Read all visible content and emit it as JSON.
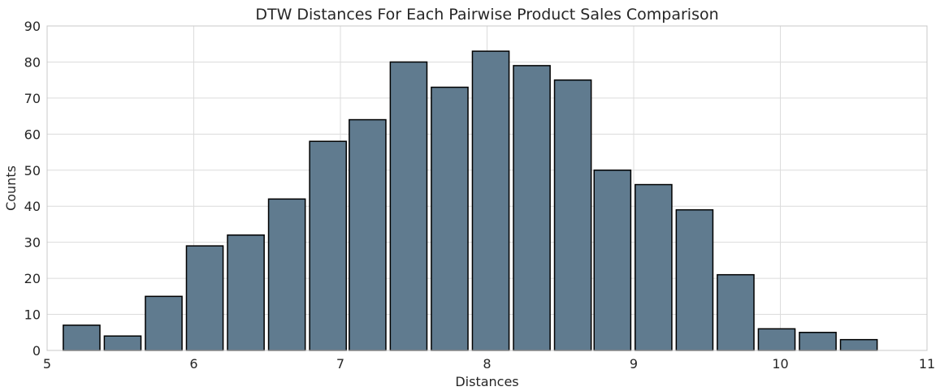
{
  "chart_data": {
    "type": "bar",
    "title": "DTW Distances For Each Pairwise Product Sales Comparison",
    "xlabel": "Distances",
    "ylabel": "Counts",
    "xlim": [
      5,
      11
    ],
    "ylim": [
      0,
      90
    ],
    "xticks": [
      5,
      6,
      7,
      8,
      9,
      10,
      11
    ],
    "yticks": [
      0,
      10,
      20,
      30,
      40,
      50,
      60,
      70,
      80,
      90
    ],
    "grid": true,
    "bar_color": "#607b8f",
    "edge_color": "#000000",
    "bins": [
      {
        "x0": 5.11,
        "x1": 5.36,
        "value": 7
      },
      {
        "x0": 5.39,
        "x1": 5.64,
        "value": 4
      },
      {
        "x0": 5.67,
        "x1": 5.92,
        "value": 15
      },
      {
        "x0": 5.95,
        "x1": 6.2,
        "value": 29
      },
      {
        "x0": 6.23,
        "x1": 6.48,
        "value": 32
      },
      {
        "x0": 6.51,
        "x1": 6.76,
        "value": 42
      },
      {
        "x0": 6.79,
        "x1": 7.04,
        "value": 58
      },
      {
        "x0": 7.06,
        "x1": 7.31,
        "value": 64
      },
      {
        "x0": 7.34,
        "x1": 7.59,
        "value": 80
      },
      {
        "x0": 7.62,
        "x1": 7.87,
        "value": 73
      },
      {
        "x0": 7.9,
        "x1": 8.15,
        "value": 83
      },
      {
        "x0": 8.18,
        "x1": 8.43,
        "value": 79
      },
      {
        "x0": 8.46,
        "x1": 8.71,
        "value": 75
      },
      {
        "x0": 8.73,
        "x1": 8.98,
        "value": 50
      },
      {
        "x0": 9.01,
        "x1": 9.26,
        "value": 46
      },
      {
        "x0": 9.29,
        "x1": 9.54,
        "value": 39
      },
      {
        "x0": 9.57,
        "x1": 9.82,
        "value": 21
      },
      {
        "x0": 9.85,
        "x1": 10.1,
        "value": 6
      },
      {
        "x0": 10.13,
        "x1": 10.38,
        "value": 5
      },
      {
        "x0": 10.41,
        "x1": 10.66,
        "value": 3
      }
    ]
  }
}
